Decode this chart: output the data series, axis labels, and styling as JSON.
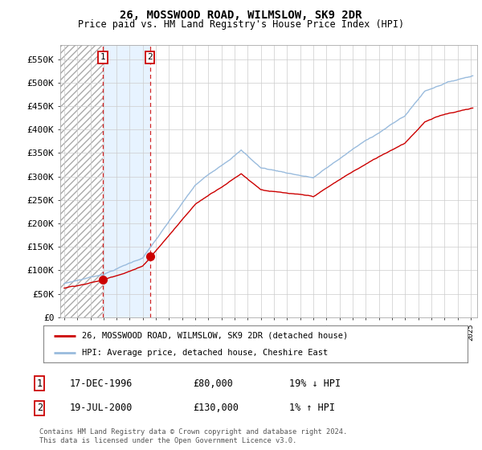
{
  "title": "26, MOSSWOOD ROAD, WILMSLOW, SK9 2DR",
  "subtitle": "Price paid vs. HM Land Registry's House Price Index (HPI)",
  "title_fontsize": 10,
  "subtitle_fontsize": 8.5,
  "ylabel_ticks": [
    "£0",
    "£50K",
    "£100K",
    "£150K",
    "£200K",
    "£250K",
    "£300K",
    "£350K",
    "£400K",
    "£450K",
    "£500K",
    "£550K"
  ],
  "ytick_values": [
    0,
    50000,
    100000,
    150000,
    200000,
    250000,
    300000,
    350000,
    400000,
    450000,
    500000,
    550000
  ],
  "ylim": [
    0,
    580000
  ],
  "xlim_start": 1993.7,
  "xlim_end": 2025.5,
  "hpi_color": "#99bbdd",
  "price_color": "#cc0000",
  "sale1_date": 1996.96,
  "sale1_price": 80000,
  "sale1_label": "1",
  "sale2_date": 2000.54,
  "sale2_price": 130000,
  "sale2_label": "2",
  "legend_line1": "26, MOSSWOOD ROAD, WILMSLOW, SK9 2DR (detached house)",
  "legend_line2": "HPI: Average price, detached house, Cheshire East",
  "table_rows": [
    [
      "1",
      "17-DEC-1996",
      "£80,000",
      "19% ↓ HPI"
    ],
    [
      "2",
      "19-JUL-2000",
      "£130,000",
      "1% ↑ HPI"
    ]
  ],
  "footnote": "Contains HM Land Registry data © Crown copyright and database right 2024.\nThis data is licensed under the Open Government Licence v3.0.",
  "background_color": "#ffffff",
  "hatch_bg_color": "#e8eef5",
  "grid_color": "#cccccc"
}
